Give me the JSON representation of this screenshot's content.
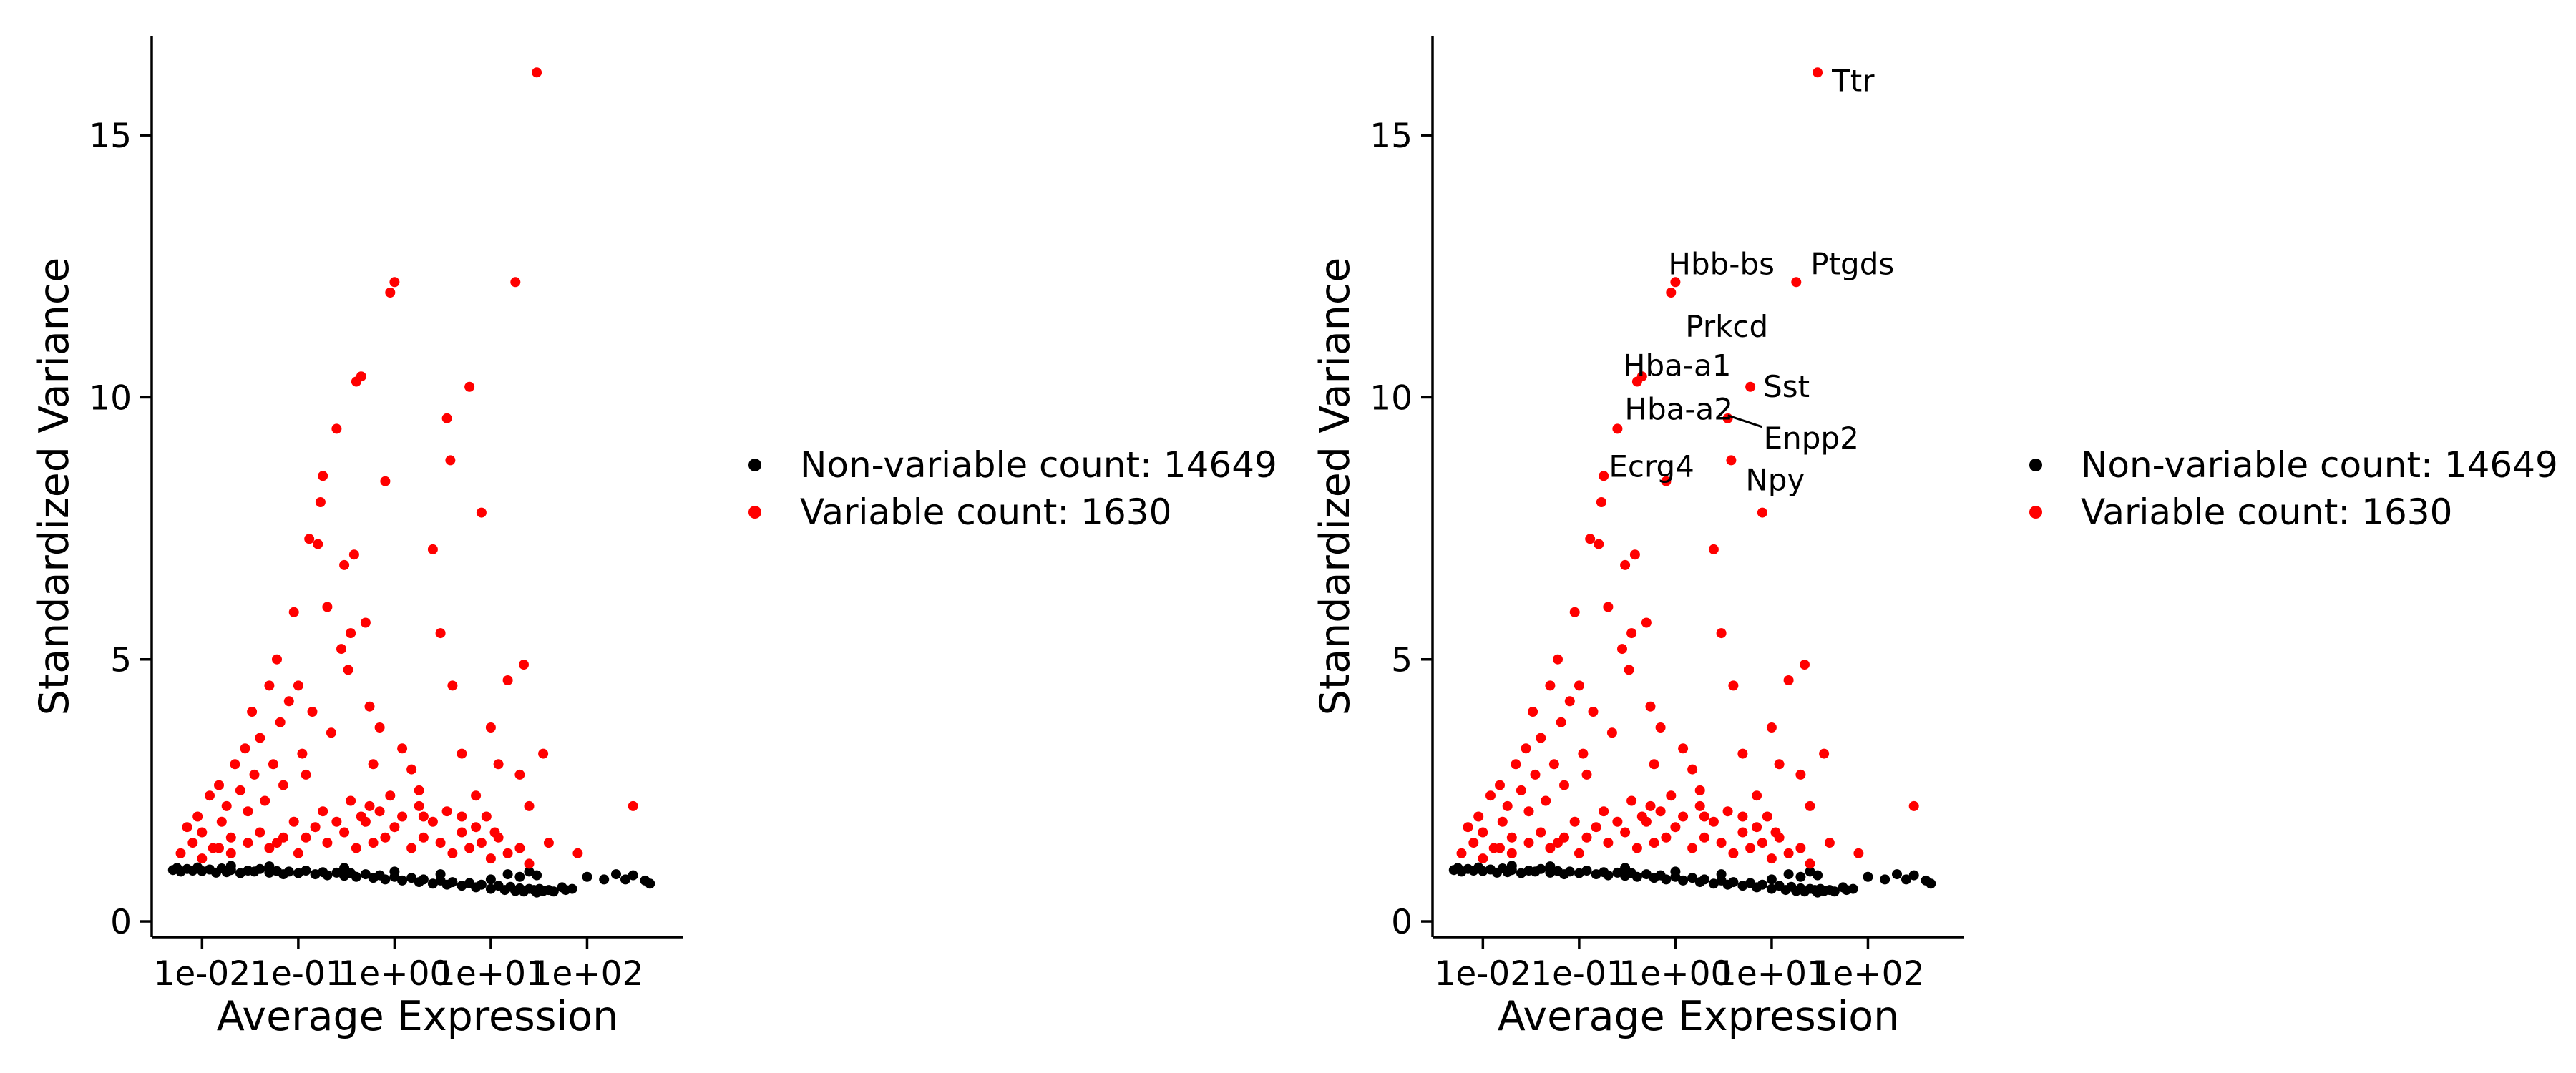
{
  "chart_data": [
    {
      "type": "scatter",
      "xlabel": "Average Expression",
      "ylabel": "Standardized Variance",
      "x_scale": "log10",
      "xlim": [
        0.003,
        1000
      ],
      "ylim": [
        -0.3,
        16.9
      ],
      "x_ticks": [
        "1e-02",
        "1e-01",
        "1e+00",
        "1e+01",
        "1e+02"
      ],
      "y_ticks": [
        "0",
        "5",
        "10",
        "15"
      ],
      "legend": {
        "position": "right",
        "entries": [
          {
            "label": "Non-variable count: 14649",
            "color": "#000000"
          },
          {
            "label": "Variable count: 1630",
            "color": "#ff0000"
          }
        ]
      },
      "series": [
        {
          "name": "Non-variable count: 14649",
          "color": "#000000",
          "points": [
            [
              0.005,
              0.98
            ],
            [
              0.0055,
              1.02
            ],
            [
              0.006,
              0.95
            ],
            [
              0.007,
              1.0
            ],
            [
              0.008,
              0.97
            ],
            [
              0.009,
              1.03
            ],
            [
              0.01,
              0.96
            ],
            [
              0.012,
              0.99
            ],
            [
              0.014,
              0.93
            ],
            [
              0.016,
              1.01
            ],
            [
              0.018,
              0.94
            ],
            [
              0.02,
              0.98
            ],
            [
              0.025,
              0.92
            ],
            [
              0.03,
              0.97
            ],
            [
              0.035,
              0.95
            ],
            [
              0.04,
              1.0
            ],
            [
              0.05,
              0.93
            ],
            [
              0.06,
              0.96
            ],
            [
              0.07,
              0.9
            ],
            [
              0.08,
              0.95
            ],
            [
              0.1,
              0.92
            ],
            [
              0.12,
              0.97
            ],
            [
              0.15,
              0.9
            ],
            [
              0.18,
              0.94
            ],
            [
              0.2,
              0.88
            ],
            [
              0.25,
              0.93
            ],
            [
              0.3,
              0.87
            ],
            [
              0.35,
              0.92
            ],
            [
              0.4,
              0.85
            ],
            [
              0.5,
              0.9
            ],
            [
              0.6,
              0.83
            ],
            [
              0.7,
              0.88
            ],
            [
              0.8,
              0.8
            ],
            [
              1.0,
              0.85
            ],
            [
              1.2,
              0.78
            ],
            [
              1.5,
              0.83
            ],
            [
              1.8,
              0.75
            ],
            [
              2.0,
              0.8
            ],
            [
              2.5,
              0.72
            ],
            [
              3.0,
              0.78
            ],
            [
              3.5,
              0.7
            ],
            [
              4.0,
              0.75
            ],
            [
              5.0,
              0.68
            ],
            [
              6.0,
              0.73
            ],
            [
              7.0,
              0.65
            ],
            [
              8.0,
              0.7
            ],
            [
              10.0,
              0.62
            ],
            [
              12.0,
              0.68
            ],
            [
              14.0,
              0.6
            ],
            [
              16.0,
              0.66
            ],
            [
              18.0,
              0.58
            ],
            [
              20.0,
              0.63
            ],
            [
              22.0,
              0.57
            ],
            [
              25.0,
              0.62
            ],
            [
              28.0,
              0.6
            ],
            [
              30.0,
              0.55
            ],
            [
              32.0,
              0.62
            ],
            [
              35.0,
              0.58
            ],
            [
              40.0,
              0.6
            ],
            [
              45.0,
              0.57
            ],
            [
              55.0,
              0.65
            ],
            [
              60.0,
              0.6
            ],
            [
              70.0,
              0.62
            ],
            [
              100.0,
              0.85
            ],
            [
              150.0,
              0.8
            ],
            [
              200.0,
              0.9
            ],
            [
              250.0,
              0.8
            ],
            [
              300.0,
              0.88
            ],
            [
              400.0,
              0.78
            ],
            [
              450.0,
              0.72
            ],
            [
              15.0,
              0.9
            ],
            [
              20.0,
              0.85
            ],
            [
              25.0,
              0.95
            ],
            [
              30.0,
              0.88
            ],
            [
              0.3,
              1.02
            ],
            [
              0.05,
              1.05
            ],
            [
              1.0,
              0.95
            ],
            [
              3.0,
              0.9
            ],
            [
              10.0,
              0.8
            ],
            [
              0.02,
              1.06
            ]
          ]
        },
        {
          "name": "Variable count: 1630",
          "color": "#ff0000",
          "points": [
            [
              0.006,
              1.3
            ],
            [
              0.007,
              1.8
            ],
            [
              0.008,
              1.5
            ],
            [
              0.009,
              2.0
            ],
            [
              0.01,
              1.7
            ],
            [
              0.012,
              2.4
            ],
            [
              0.013,
              1.4
            ],
            [
              0.015,
              2.6
            ],
            [
              0.016,
              1.9
            ],
            [
              0.018,
              2.2
            ],
            [
              0.02,
              1.6
            ],
            [
              0.022,
              3.0
            ],
            [
              0.025,
              2.5
            ],
            [
              0.028,
              3.3
            ],
            [
              0.03,
              2.1
            ],
            [
              0.033,
              4.0
            ],
            [
              0.035,
              2.8
            ],
            [
              0.04,
              3.5
            ],
            [
              0.045,
              2.3
            ],
            [
              0.05,
              4.5
            ],
            [
              0.055,
              3.0
            ],
            [
              0.06,
              5.0
            ],
            [
              0.065,
              3.8
            ],
            [
              0.07,
              2.6
            ],
            [
              0.08,
              4.2
            ],
            [
              0.09,
              5.9
            ],
            [
              0.1,
              4.5
            ],
            [
              0.11,
              3.2
            ],
            [
              0.12,
              2.8
            ],
            [
              0.13,
              7.3
            ],
            [
              0.14,
              4.0
            ],
            [
              0.16,
              7.2
            ],
            [
              0.17,
              8.0
            ],
            [
              0.18,
              8.5
            ],
            [
              0.2,
              6.0
            ],
            [
              0.22,
              3.6
            ],
            [
              0.25,
              9.4
            ],
            [
              0.28,
              5.2
            ],
            [
              0.3,
              6.8
            ],
            [
              0.33,
              4.8
            ],
            [
              0.35,
              5.5
            ],
            [
              0.38,
              7.0
            ],
            [
              0.4,
              10.3
            ],
            [
              0.45,
              10.4
            ],
            [
              0.5,
              5.7
            ],
            [
              0.55,
              4.1
            ],
            [
              0.6,
              3.0
            ],
            [
              0.7,
              3.7
            ],
            [
              0.8,
              8.4
            ],
            [
              0.9,
              12.0
            ],
            [
              1.0,
              12.2
            ],
            [
              1.2,
              3.3
            ],
            [
              1.5,
              2.9
            ],
            [
              1.8,
              2.5
            ],
            [
              2.0,
              2.0
            ],
            [
              2.5,
              7.1
            ],
            [
              3.0,
              5.5
            ],
            [
              3.5,
              9.6
            ],
            [
              3.8,
              8.8
            ],
            [
              4.0,
              4.5
            ],
            [
              5.0,
              3.2
            ],
            [
              6.0,
              10.2
            ],
            [
              7.0,
              2.4
            ],
            [
              8.0,
              7.8
            ],
            [
              10.0,
              3.7
            ],
            [
              12.0,
              3.0
            ],
            [
              15.0,
              4.6
            ],
            [
              18.0,
              12.2
            ],
            [
              20.0,
              2.8
            ],
            [
              22.0,
              4.9
            ],
            [
              25.0,
              2.2
            ],
            [
              30.0,
              16.2
            ],
            [
              35.0,
              3.2
            ],
            [
              40.0,
              1.5
            ],
            [
              80.0,
              1.3
            ],
            [
              300.0,
              2.2
            ],
            [
              0.01,
              1.2
            ],
            [
              0.02,
              1.3
            ],
            [
              0.03,
              1.5
            ],
            [
              0.05,
              1.4
            ],
            [
              0.07,
              1.6
            ],
            [
              0.1,
              1.3
            ],
            [
              0.15,
              1.8
            ],
            [
              0.2,
              1.5
            ],
            [
              0.3,
              1.7
            ],
            [
              0.4,
              1.4
            ],
            [
              0.5,
              1.9
            ],
            [
              0.6,
              1.5
            ],
            [
              0.8,
              1.6
            ],
            [
              1.0,
              1.8
            ],
            [
              1.5,
              1.4
            ],
            [
              2.0,
              1.6
            ],
            [
              3.0,
              1.5
            ],
            [
              4.0,
              1.3
            ],
            [
              5.0,
              1.7
            ],
            [
              6.0,
              1.4
            ],
            [
              8.0,
              1.5
            ],
            [
              10.0,
              1.2
            ],
            [
              12.0,
              1.6
            ],
            [
              15.0,
              1.3
            ],
            [
              20.0,
              1.4
            ],
            [
              25.0,
              1.1
            ],
            [
              0.015,
              1.4
            ],
            [
              0.04,
              1.7
            ],
            [
              0.06,
              1.5
            ],
            [
              0.09,
              1.9
            ],
            [
              0.12,
              1.6
            ],
            [
              0.18,
              2.1
            ],
            [
              0.25,
              1.9
            ],
            [
              0.35,
              2.3
            ],
            [
              0.45,
              2.0
            ],
            [
              0.55,
              2.2
            ],
            [
              0.7,
              2.1
            ],
            [
              0.9,
              2.4
            ],
            [
              1.2,
              2.0
            ],
            [
              1.8,
              2.2
            ],
            [
              2.5,
              1.9
            ],
            [
              3.5,
              2.1
            ],
            [
              5.0,
              2.0
            ],
            [
              7.0,
              1.8
            ],
            [
              9.0,
              2.0
            ],
            [
              11.0,
              1.7
            ]
          ],
          "annotations": [
            {
              "label": "Ttr",
              "x": 30.0,
              "y": 16.2
            },
            {
              "label": "Hbb-bs",
              "x": 1.0,
              "y": 12.2
            },
            {
              "label": "Ptgds",
              "x": 18.0,
              "y": 12.2
            },
            {
              "label": "Prkcd",
              "x": 0.9,
              "y": 12.0
            },
            {
              "label": "Hba-a1",
              "x": 0.4,
              "y": 10.3
            },
            {
              "label": "Sst",
              "x": 6.0,
              "y": 10.2
            },
            {
              "label": "Hba-a2",
              "x": 0.25,
              "y": 9.4
            },
            {
              "label": "Enpp2",
              "x": 3.5,
              "y": 9.6
            },
            {
              "label": "Ecrg4",
              "x": 0.8,
              "y": 8.4
            },
            {
              "label": "Npy",
              "x": 3.8,
              "y": 8.8
            }
          ]
        }
      ]
    }
  ]
}
